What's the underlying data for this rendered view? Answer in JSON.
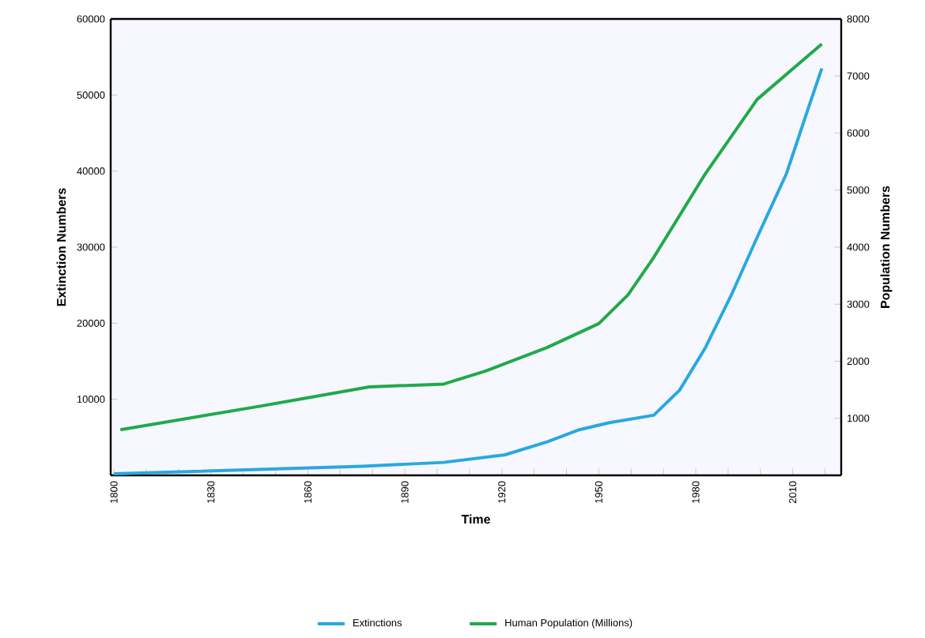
{
  "chart_data": {
    "type": "line",
    "xlabel": "Time",
    "ylabel": "Extinction Numbers",
    "y2label": "Population Numbers",
    "xlim": [
      1799,
      2025
    ],
    "ylim": [
      0,
      60000
    ],
    "y2lim": [
      0,
      8000
    ],
    "xticks": [
      1800,
      {
        "value": 1810,
        "label": null
      },
      {
        "value": 1820,
        "label": null
      },
      1830,
      {
        "value": 1840,
        "label": null
      },
      {
        "value": 1850,
        "label": null
      },
      1860,
      {
        "value": 1870,
        "label": null
      },
      {
        "value": 1880,
        "label": null
      },
      1890,
      {
        "value": 1900,
        "label": null
      },
      {
        "value": 1910,
        "label": null
      },
      1920,
      {
        "value": 1930,
        "label": null
      },
      {
        "value": 1940,
        "label": null
      },
      1950,
      {
        "value": 1960,
        "label": null
      },
      {
        "value": 1970,
        "label": null
      },
      1980,
      {
        "value": 1990,
        "label": null
      },
      {
        "value": 2000,
        "label": null
      },
      2010,
      {
        "value": 2020,
        "label": null
      }
    ],
    "yticks": [
      10000,
      20000,
      30000,
      40000,
      50000,
      60000
    ],
    "y2ticks": [
      1000,
      2000,
      3000,
      4000,
      5000,
      6000,
      7000,
      8000
    ],
    "grid": false,
    "legend": "bottom",
    "series": [
      {
        "name": "Extinctions",
        "color": "#29a8e0",
        "x": [
          1800,
          1877,
          1902,
          1921,
          1934,
          1944,
          1953,
          1967,
          1975,
          1983,
          1991,
          1999,
          2008,
          2015,
          2019
        ],
        "values": [
          200,
          1200,
          1700,
          2700,
          4400,
          6000,
          6900,
          7900,
          11200,
          16800,
          23700,
          31300,
          39600,
          48500,
          53500
        ]
      },
      {
        "name": "Human Population (Millions)",
        "color": "#1faa4a",
        "axis": "y2",
        "x": [
          1802,
          1846,
          1879,
          1902,
          1915,
          1934,
          1950,
          1959,
          1967,
          1983,
          1999,
          2019
        ],
        "values": [
          800,
          1220,
          1550,
          1600,
          1830,
          2240,
          2660,
          3160,
          3820,
          5290,
          6590,
          7560
        ]
      }
    ]
  }
}
